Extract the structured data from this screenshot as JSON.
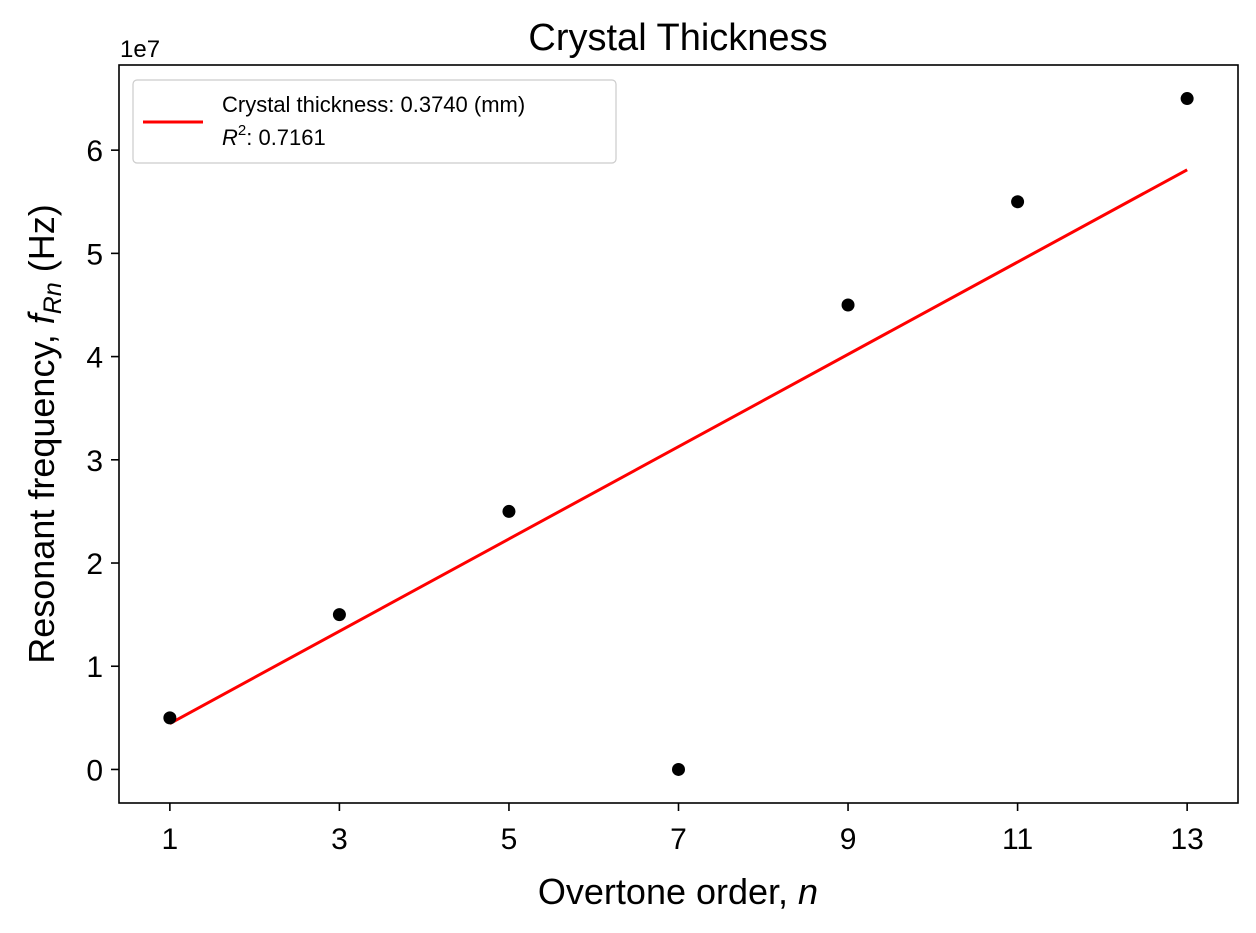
{
  "chart_data": {
    "type": "scatter",
    "title": "Crystal Thickness",
    "xlabel": {
      "prefix": "Overtone order, ",
      "var": "n"
    },
    "ylabel": {
      "prefix": "Resonant frequency, ",
      "var": "f",
      "sub": "Rn",
      "unit": " (Hz)"
    },
    "offset_text": "1e7",
    "xlim": [
      0.4,
      13.6
    ],
    "ylim": [
      -3250000,
      68250000
    ],
    "y_scale_factor": 10000000,
    "xticks": [
      1,
      3,
      5,
      7,
      9,
      11,
      13
    ],
    "yticks": [
      0,
      10000000,
      20000000,
      30000000,
      40000000,
      50000000,
      60000000
    ],
    "ytick_labels": [
      "0",
      "1",
      "2",
      "3",
      "4",
      "5",
      "6"
    ],
    "grid": false,
    "legend_position": "top-left",
    "series": [
      {
        "kind": "scatter",
        "color": "#000000",
        "x": [
          1,
          3,
          5,
          7,
          9,
          11,
          13
        ],
        "y": [
          5000000,
          15000000,
          25000000,
          0,
          45000000,
          55000000,
          65000000
        ]
      },
      {
        "kind": "line",
        "color": "#ff0000",
        "x": [
          1,
          13
        ],
        "y": [
          4450000,
          58100000
        ]
      }
    ],
    "legend": {
      "line1": "Crystal thickness: 0.3740 (mm)",
      "line2_var": "R",
      "line2_sup": "2",
      "line2_rest": ": 0.7161"
    }
  }
}
